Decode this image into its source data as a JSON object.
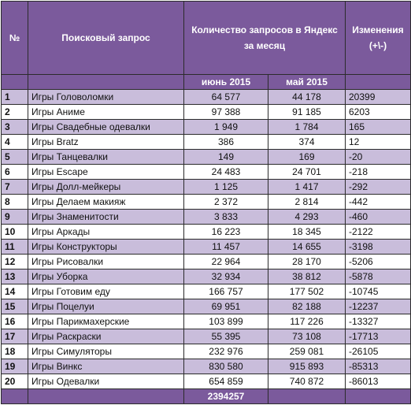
{
  "headers": {
    "num": "№",
    "query": "Поисковый запрос",
    "yandex": "Количество запросов в Яндекс за месяц",
    "changes": "Изменения (+\\-)",
    "june": "июнь 2015",
    "may": "май 2015"
  },
  "rows": [
    {
      "num": "1",
      "query": "Игры Головоломки",
      "june": "64 577",
      "may": "44 178",
      "change": "20399"
    },
    {
      "num": "2",
      "query": "Игры Аниме",
      "june": "97 388",
      "may": "91 185",
      "change": "6203"
    },
    {
      "num": "3",
      "query": "Игры Свадебные одевалки",
      "june": "1 949",
      "may": "1 784",
      "change": "165"
    },
    {
      "num": "4",
      "query": "Игры Bratz",
      "june": "386",
      "may": "374",
      "change": "12"
    },
    {
      "num": "5",
      "query": "Игры Танцевалки",
      "june": "149",
      "may": "169",
      "change": "-20"
    },
    {
      "num": "6",
      "query": "Игры Escape",
      "june": "24 483",
      "may": "24 701",
      "change": "-218"
    },
    {
      "num": "7",
      "query": "Игры Долл-мейкеры",
      "june": "1 125",
      "may": "1 417",
      "change": "-292"
    },
    {
      "num": "8",
      "query": "Игры Делаем макияж",
      "june": "2 372",
      "may": "2 814",
      "change": "-442"
    },
    {
      "num": "9",
      "query": "Игры Знаменитости",
      "june": "3 833",
      "may": "4 293",
      "change": "-460"
    },
    {
      "num": "10",
      "query": "Игры Аркады",
      "june": "16 223",
      "may": "18 345",
      "change": "-2122"
    },
    {
      "num": "11",
      "query": "Игры Конструкторы",
      "june": "11 457",
      "may": "14 655",
      "change": "-3198"
    },
    {
      "num": "12",
      "query": "Игры Рисовалки",
      "june": "22 964",
      "may": "28 170",
      "change": "-5206"
    },
    {
      "num": "13",
      "query": "Игры Уборка",
      "june": "32 934",
      "may": "38 812",
      "change": "-5878"
    },
    {
      "num": "14",
      "query": "Игры Готовим еду",
      "june": "166 757",
      "may": "177 502",
      "change": "-10745"
    },
    {
      "num": "15",
      "query": "Игры Поцелуи",
      "june": "69 951",
      "may": "82 188",
      "change": "-12237"
    },
    {
      "num": "16",
      "query": "Игры Парикмахерские",
      "june": "103 899",
      "may": "117 226",
      "change": "-13327"
    },
    {
      "num": "17",
      "query": "Игры Раскраски",
      "june": "55 395",
      "may": "73 108",
      "change": "-17713"
    },
    {
      "num": "18",
      "query": "Игры Симуляторы",
      "june": "232 976",
      "may": "259 081",
      "change": "-26105"
    },
    {
      "num": "19",
      "query": "Игры Винкс",
      "june": "830 580",
      "may": "915 893",
      "change": "-85313"
    },
    {
      "num": "20",
      "query": "Игры Одевалки",
      "june": "654 859",
      "may": "740 872",
      "change": "-86013"
    }
  ],
  "footer": {
    "june_total": "2394257"
  }
}
